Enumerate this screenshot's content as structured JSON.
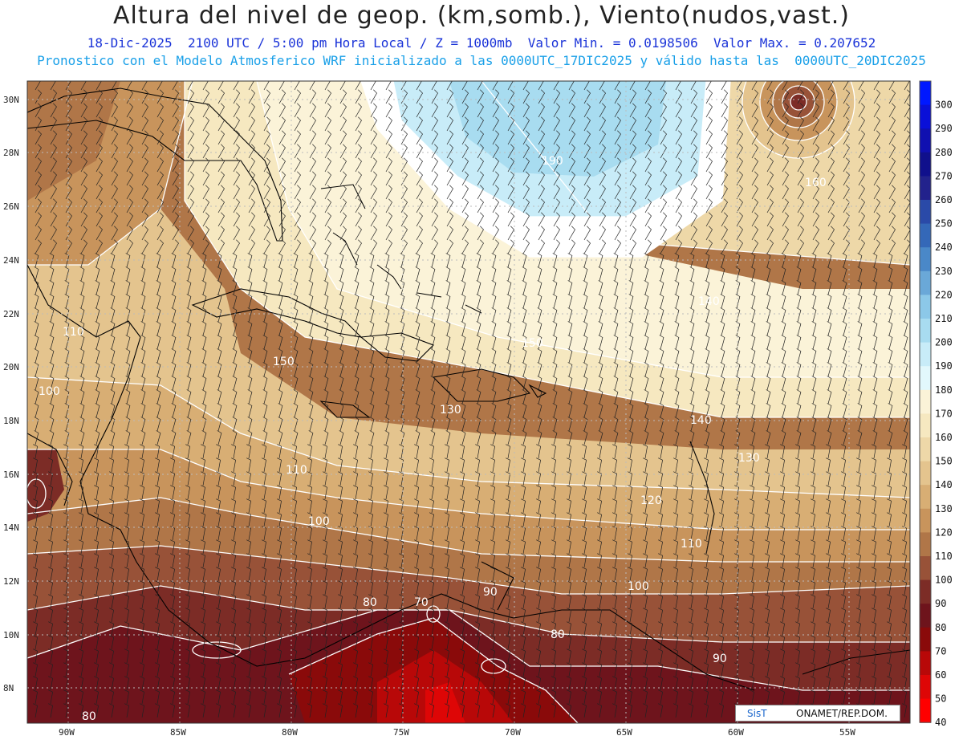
{
  "title": "Altura del nivel de geop. (km,somb.), Viento(nudos,vast.)",
  "subtitle_1": "18-Dic-2025  2100 UTC / 5:00 pm Hora Local / Z = 1000mb  Valor Min. = 0.0198506  Valor Max. = 0.207652",
  "subtitle_2": "Pronostico con el Modelo Atmosferico WRF inicializado a las 0000UTC_17DIC2025 y válido hasta las  0000UTC_20DIC2025",
  "lat_ticks": [
    "30N",
    "28N",
    "26N",
    "24N",
    "22N",
    "20N",
    "18N",
    "16N",
    "14N",
    "12N",
    "10N",
    "8N"
  ],
  "lon_ticks": [
    "90W",
    "85W",
    "80W",
    "75W",
    "70W",
    "65W",
    "60W",
    "55W"
  ],
  "contour_labels": [
    "190",
    "160",
    "110",
    "150",
    "150",
    "140",
    "100",
    "140",
    "110",
    "130",
    "120",
    "100",
    "110",
    "90",
    "100",
    "80",
    "70",
    "80",
    "90",
    "80",
    "130"
  ],
  "colorbar": {
    "labels": [
      "300",
      "290",
      "280",
      "270",
      "260",
      "250",
      "240",
      "230",
      "220",
      "210",
      "200",
      "190",
      "180",
      "170",
      "160",
      "150",
      "140",
      "130",
      "120",
      "110",
      "100",
      "90",
      "80",
      "70",
      "60",
      "50",
      "40"
    ],
    "colors": [
      "#0018ff",
      "#0a10d8",
      "#1010b0",
      "#10108c",
      "#22228c",
      "#2a4aa8",
      "#3468b8",
      "#4a88c8",
      "#6aa8d8",
      "#8cc8e8",
      "#a8dcf0",
      "#c8ecf8",
      "#e2f8fc",
      "#fbf3d8",
      "#f6e8c0",
      "#eed8a8",
      "#e4c48e",
      "#d8ae74",
      "#c8945c",
      "#b07648",
      "#985238",
      "#7c2c26",
      "#6e141c",
      "#8a0a0a",
      "#b80808",
      "#de0606",
      "#ff0000"
    ]
  },
  "credit": {
    "logo": "SisT",
    "org": "ONAMET/REP.DOM."
  }
}
